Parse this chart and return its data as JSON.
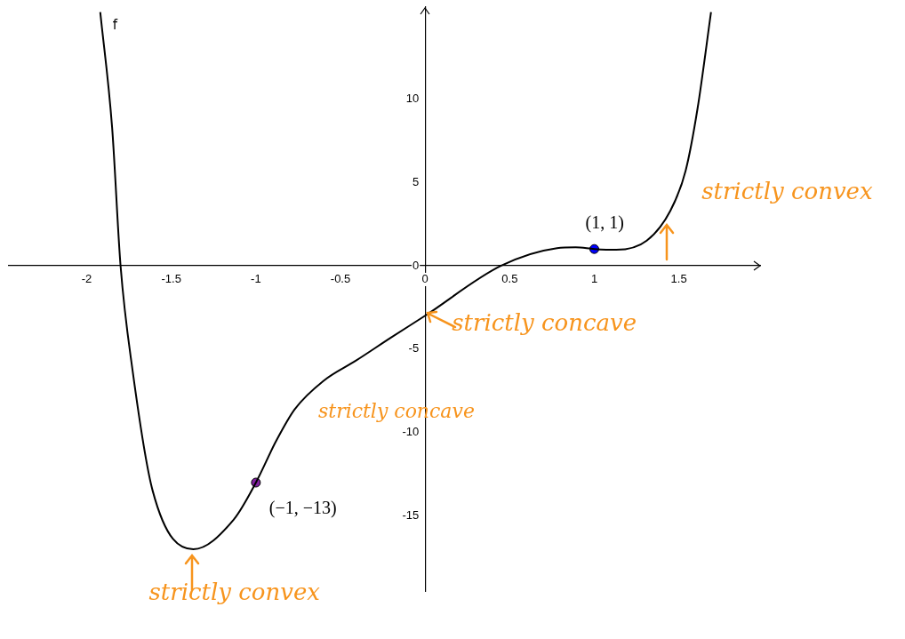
{
  "chart_data": {
    "type": "line",
    "xlim": [
      -2.46,
      1.98
    ],
    "ylim": [
      -19.5,
      15.5
    ],
    "xticks": [
      -2,
      -1.5,
      -1,
      -0.5,
      0,
      0.5,
      1,
      1.5
    ],
    "yticks": [
      -15,
      -10,
      -5,
      0,
      5,
      10
    ],
    "grid": false,
    "legend": false,
    "line_style": "solid",
    "series": [
      {
        "name": "f",
        "color": "#000000",
        "x": [
          -1.92,
          -1.85,
          -1.8,
          -1.73,
          -1.61,
          -1.37,
          -1.13,
          -1,
          -0.88,
          -0.77,
          -0.6,
          -0.41,
          -0.2,
          0,
          0.45,
          0.78,
          0.89,
          1,
          1.13,
          1.31,
          1.45,
          1.54,
          1.61,
          1.69
        ],
        "values": [
          15.2,
          8.3,
          0,
          -6.2,
          -13.5,
          -17,
          -15.2,
          -13,
          -10.5,
          -8.6,
          -6.9,
          -5.7,
          -4.3,
          -3,
          0,
          1.05,
          1.1,
          1,
          0.95,
          1.5,
          3.3,
          5.7,
          9.4,
          15.2
        ]
      },
      {
        "type": "scatter",
        "color": "#0000ff",
        "x": [
          1
        ],
        "values": [
          1
        ]
      },
      {
        "type": "scatter",
        "color": "#7f1f9f",
        "x": [
          -1
        ],
        "values": [
          -13
        ]
      }
    ],
    "annotations": [
      {
        "text": "(1, 1)",
        "x": 1,
        "y": 1
      },
      {
        "text": "(−1, −13)",
        "x": -1,
        "y": -13
      },
      {
        "text": "strictly convex",
        "x": -1.37,
        "y": -17
      },
      "strictly concave",
      {
        "text": "strictly concave",
        "x": 0,
        "y": -3
      },
      {
        "text": "strictly convex",
        "x": 1.45,
        "y": 3.3
      }
    ]
  }
}
